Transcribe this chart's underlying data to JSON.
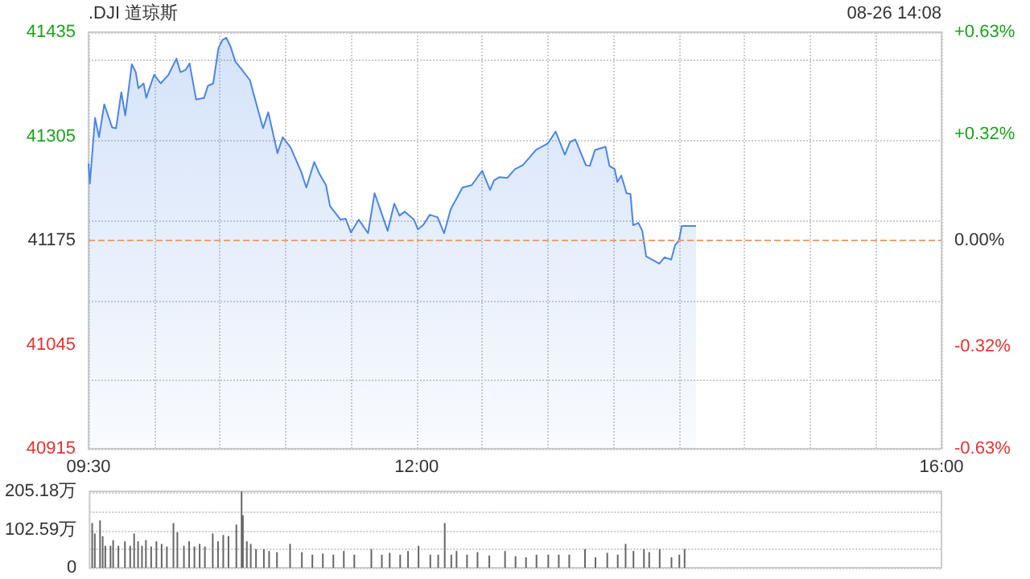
{
  "chart_data": [
    {
      "type": "area",
      "title": ".DJI 道琼斯",
      "annotations": [
        "08-26 14:08"
      ],
      "x": [
        9.5,
        9.51,
        9.55,
        9.58,
        9.62,
        9.68,
        9.71,
        9.75,
        9.78,
        9.83,
        9.86,
        9.88,
        9.92,
        9.94,
        10.0,
        10.05,
        10.11,
        10.17,
        10.2,
        10.24,
        10.27,
        10.32,
        10.38,
        10.41,
        10.45,
        10.49,
        10.52,
        10.55,
        10.58,
        10.62,
        10.67,
        10.73,
        10.77,
        10.83,
        10.87,
        10.94,
        10.98,
        11.04,
        11.12,
        11.16,
        11.22,
        11.26,
        11.31,
        11.34,
        11.42,
        11.46,
        11.5,
        11.56,
        11.63,
        11.68,
        11.75,
        11.78,
        11.83,
        11.87,
        11.91,
        11.98,
        12.01,
        12.05,
        12.1,
        12.16,
        12.21,
        12.26,
        12.35,
        12.42,
        12.5,
        12.56,
        12.59,
        12.63,
        12.69,
        12.75,
        12.81,
        12.91,
        13.0,
        13.06,
        13.13,
        13.17,
        13.21,
        13.29,
        13.32,
        13.36,
        13.44,
        13.47,
        13.51,
        13.53,
        13.56,
        13.6,
        13.63,
        13.65,
        13.69,
        13.72,
        13.75,
        13.85,
        13.89,
        13.94,
        13.97,
        14.0,
        14.02,
        14.13
      ],
      "series": [
        {
          "color": "#4a86e8",
          "values": [
            41271,
            41246,
            41328,
            41304,
            41345,
            41316,
            41315,
            41360,
            41331,
            41395,
            41385,
            41365,
            41371,
            41353,
            41382,
            41371,
            41382,
            41402,
            41385,
            41388,
            41396,
            41351,
            41353,
            41368,
            41371,
            41415,
            41425,
            41428,
            41418,
            41398,
            41388,
            41375,
            41351,
            41315,
            41335,
            41284,
            41304,
            41291,
            41261,
            41241,
            41273,
            41258,
            41244,
            41218,
            41201,
            41202,
            41185,
            41201,
            41184,
            41234,
            41201,
            41187,
            41221,
            41206,
            41211,
            41201,
            41189,
            41194,
            41207,
            41204,
            41184,
            41214,
            41241,
            41244,
            41262,
            41238,
            41250,
            41254,
            41253,
            41264,
            41269,
            41288,
            41296,
            41311,
            41282,
            41298,
            41301,
            41269,
            41268,
            41288,
            41292,
            41268,
            41264,
            41248,
            41256,
            41234,
            41233,
            41194,
            41197,
            41187,
            41155,
            41146,
            41154,
            41151,
            41169,
            41175,
            41193,
            41193
          ]
        }
      ],
      "xlim": [
        9.5,
        16
      ],
      "xticks": [
        {
          "value": 9.5,
          "label": "09:30"
        },
        {
          "value": 10,
          "label": null
        },
        {
          "value": 10.5,
          "label": null
        },
        {
          "value": 11,
          "label": null
        },
        {
          "value": 11.5,
          "label": null
        },
        {
          "value": 12,
          "label": "12:00"
        },
        {
          "value": 12.5,
          "label": null
        },
        {
          "value": 13,
          "label": null
        },
        {
          "value": 13.5,
          "label": null
        },
        {
          "value": 14,
          "label": null
        },
        {
          "value": 14.5,
          "label": null
        },
        {
          "value": 15,
          "label": null
        },
        {
          "value": 15.5,
          "label": null
        },
        {
          "value": 16,
          "label": "16:00"
        }
      ],
      "ylim": [
        40915,
        41435
      ],
      "yticks": [
        40915,
        41045,
        41175,
        41305,
        41435
      ],
      "y2lim": [
        -0.63,
        0.63
      ],
      "y2ticks": [
        {
          "value": -0.63,
          "label": "-0.63%"
        },
        {
          "value": -0.32,
          "label": "-0.32%"
        },
        {
          "value": 0,
          "label": "0.00%"
        },
        {
          "value": 0.32,
          "label": "+0.32%"
        },
        {
          "value": 0.63,
          "label": "+0.63%"
        }
      ],
      "ref_lines": [
        {
          "axis": "y",
          "value": 41175,
          "color": "#f0a070",
          "line_style": "dashed"
        }
      ],
      "grid": true
    },
    {
      "type": "bar",
      "x": [
        9.52,
        9.54,
        9.58,
        9.6,
        9.62,
        9.66,
        9.68,
        9.72,
        9.77,
        9.81,
        9.84,
        9.87,
        9.9,
        9.93,
        9.97,
        10.01,
        10.05,
        10.09,
        10.14,
        10.17,
        10.22,
        10.26,
        10.3,
        10.34,
        10.38,
        10.44,
        10.48,
        10.52,
        10.56,
        10.62,
        10.66,
        10.67,
        10.7,
        10.73,
        10.77,
        10.83,
        10.87,
        10.93,
        11.03,
        11.12,
        11.2,
        11.28,
        11.36,
        11.44,
        11.52,
        11.65,
        11.73,
        11.79,
        11.87,
        11.93,
        12.01,
        12.1,
        12.16,
        12.21,
        12.26,
        12.3,
        12.38,
        12.46,
        12.55,
        12.67,
        12.75,
        12.83,
        12.91,
        13.0,
        13.08,
        13.16,
        13.28,
        13.36,
        13.45,
        13.53,
        13.59,
        13.65,
        13.73,
        13.77,
        13.85,
        13.94,
        14.0,
        14.04
      ],
      "series": [
        {
          "color": "#666666",
          "values": [
            120,
            92,
            127,
            85,
            59,
            59,
            74,
            59,
            71,
            59,
            92,
            71,
            59,
            74,
            57,
            71,
            64,
            57,
            120,
            95,
            59,
            71,
            57,
            64,
            57,
            92,
            71,
            88,
            85,
            116,
            205,
            141,
            71,
            64,
            50,
            50,
            45,
            42,
            64,
            42,
            35,
            38,
            35,
            45,
            35,
            50,
            35,
            40,
            35,
            45,
            59,
            35,
            35,
            120,
            35,
            45,
            35,
            42,
            33,
            45,
            31,
            28,
            35,
            35,
            35,
            35,
            50,
            28,
            40,
            35,
            64,
            45,
            50,
            42,
            50,
            28,
            35,
            50
          ]
        }
      ],
      "xlim": [
        9.5,
        16
      ],
      "ylim": [
        0,
        205.18
      ],
      "yticks": [
        0,
        {
          "value": 102.59,
          "label": "102.59万"
        },
        {
          "value": 205.18,
          "label": "205.18万"
        }
      ],
      "tick_labels": "y",
      "grid": "y"
    }
  ]
}
